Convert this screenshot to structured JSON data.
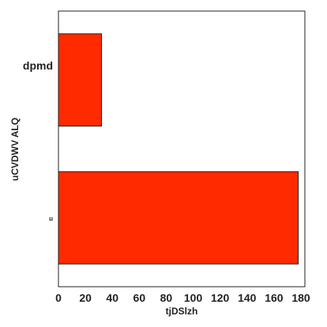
{
  "chart_data": {
    "type": "bar",
    "orientation": "horizontal",
    "categories": [
      "dpmd",
      "u"
    ],
    "values": [
      32,
      178
    ],
    "xlabel": "tjDSlzh",
    "ylabel": "uCVDWV ALQ",
    "xlim": [
      0,
      180
    ],
    "xticks": [
      0,
      20,
      40,
      60,
      80,
      100,
      120,
      140,
      160,
      180
    ],
    "grid": false,
    "legend": "none",
    "bar_color": "#ff2a00",
    "edge_color": "#222222"
  }
}
